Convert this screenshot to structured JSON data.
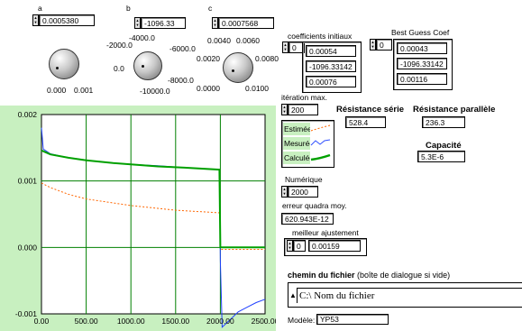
{
  "knob_a": {
    "label": "a",
    "value": "0.0005380",
    "scale_min": "0.000",
    "scale_max": "0.001"
  },
  "knob_b": {
    "label": "b",
    "value": "-1096.33",
    "ticks": [
      "-2000.0",
      "-4000.0",
      "-6000.0",
      "0.0",
      "-8000.0",
      "-10000.0"
    ]
  },
  "knob_c": {
    "label": "c",
    "value": "0.0007568",
    "ticks": [
      "0.0040",
      "0.0060",
      "0.0020",
      "0.0080",
      "0.0000",
      "0.0100"
    ]
  },
  "coef_init": {
    "label": "coefficients initiaux",
    "index": "0",
    "values": [
      "0.00054",
      "-1096.33142",
      "0.00076"
    ]
  },
  "best_guess": {
    "label": "Best Guess Coef",
    "index": "0",
    "values": [
      "0.00043",
      "-1096.33142",
      "0.00116"
    ]
  },
  "iter_max": {
    "label": "itération max.",
    "value": "200"
  },
  "legend": {
    "items": [
      "Estimée",
      "Mesurée",
      "Calculée"
    ],
    "colors": [
      "#ff6600",
      "#3050ff",
      "#00a000"
    ]
  },
  "res_serie": {
    "label": "Résistance série",
    "value": "528.4"
  },
  "res_par": {
    "label": "Résistance parallèle",
    "value": "236.3"
  },
  "capacite": {
    "label": "Capacité",
    "value": "5.3E-6"
  },
  "numerique": {
    "label": "Numérique",
    "value": "2000"
  },
  "erreur": {
    "label": "erreur quadra moy.",
    "value": "620.943E-12"
  },
  "meilleur": {
    "label": "meilleur ajustement",
    "index": "0",
    "value": "0.00159"
  },
  "chemin": {
    "label_bold": "chemin du fichier",
    "label_rest": " (boîte de dialogue si vide)",
    "value": "C:\\ Nom du fichier"
  },
  "modele": {
    "label": "Modèle:",
    "value": "YP53"
  },
  "colors": {
    "plot_frame": "#c8f0c0",
    "plot_bg": "#ffffff",
    "grid": "#008000"
  },
  "chart_data": {
    "type": "line",
    "xlim": [
      0,
      2500
    ],
    "ylim": [
      -0.001,
      0.002
    ],
    "x_ticks": [
      "0.00",
      "500.00",
      "1000.00",
      "1500.00",
      "2000.00",
      "2500.00"
    ],
    "y_ticks": [
      "0.002",
      "0.001",
      "0.000",
      "-0.001"
    ],
    "series": [
      {
        "name": "Estimée",
        "color": "#ff6600",
        "dash": true,
        "points": [
          [
            0,
            0.00097
          ],
          [
            100,
            0.0009
          ],
          [
            300,
            0.0008
          ],
          [
            500,
            0.00073
          ],
          [
            1000,
            0.00063
          ],
          [
            1500,
            0.00056
          ],
          [
            2000,
            0.00052
          ],
          [
            2000,
            -3e-05
          ],
          [
            2500,
            -3e-05
          ]
        ]
      },
      {
        "name": "Mesurée",
        "color": "#2040ff",
        "dash": false,
        "points": [
          [
            0,
            0.0018
          ],
          [
            20,
            0.00148
          ],
          [
            100,
            0.00141
          ],
          [
            300,
            0.00135
          ],
          [
            500,
            0.00131
          ],
          [
            800,
            0.00127
          ],
          [
            1000,
            0.00125
          ],
          [
            1300,
            0.00123
          ],
          [
            1600,
            0.0012
          ],
          [
            1990,
            0.00117
          ],
          [
            2000,
            -0.0002
          ],
          [
            2020,
            -0.0012
          ],
          [
            2100,
            -0.0011
          ],
          [
            2200,
            -0.00097
          ],
          [
            2300,
            -0.0009
          ],
          [
            2400,
            -0.00083
          ],
          [
            2500,
            -0.00078
          ]
        ]
      },
      {
        "name": "Calculée",
        "color": "#00a000",
        "dash": false,
        "points": [
          [
            0,
            0.00146
          ],
          [
            100,
            0.0014
          ],
          [
            300,
            0.00135
          ],
          [
            500,
            0.00131
          ],
          [
            800,
            0.00127
          ],
          [
            1000,
            0.00125
          ],
          [
            1300,
            0.00122
          ],
          [
            1600,
            0.0012
          ],
          [
            1990,
            0.00117
          ],
          [
            2000,
            0.0
          ],
          [
            2500,
            0.0
          ]
        ]
      }
    ]
  }
}
